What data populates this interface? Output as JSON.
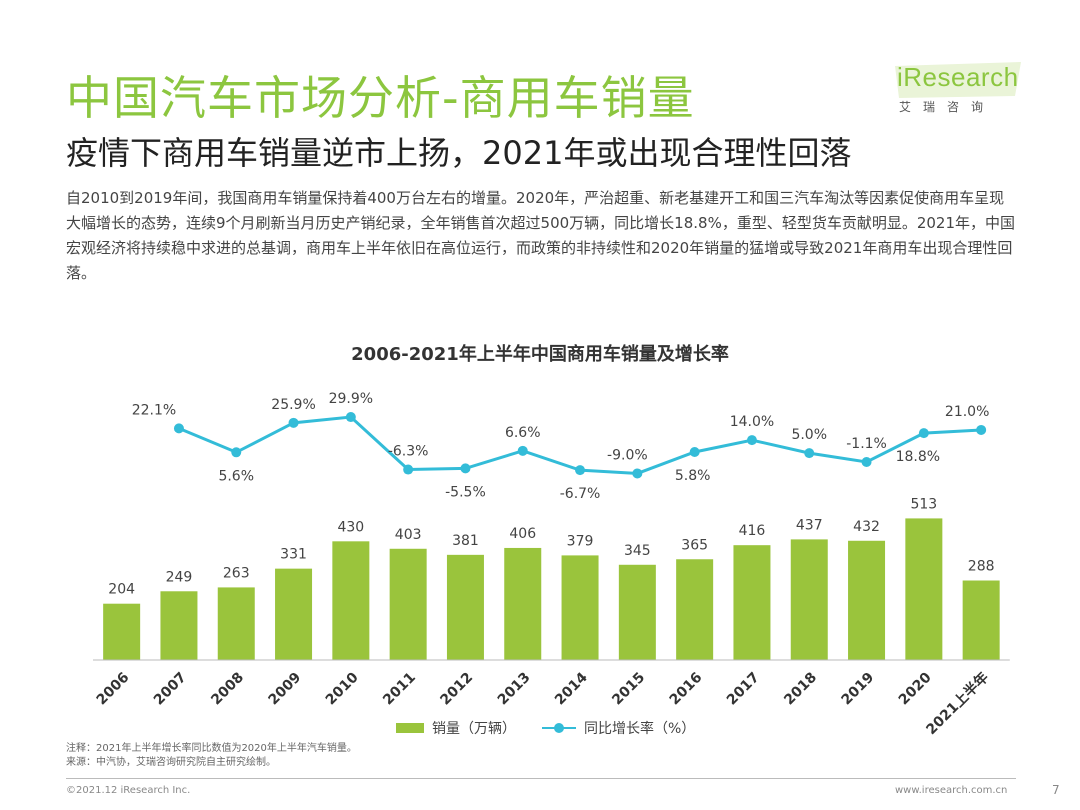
{
  "header": {
    "title": "中国汽车市场分析-商用车销量",
    "subtitle": "疫情下商用车销量逆市上扬，2021年或出现合理性回落",
    "logo_brand": "iResearch",
    "logo_sub": "艾瑞咨询",
    "accent_color": "#8cc63f"
  },
  "body": {
    "paragraph": "自2010到2019年间，我国商用车销量保持着400万台左右的增量。2020年，严治超重、新老基建开工和国三汽车淘汰等因素促使商用车呈现大幅增长的态势，连续9个月刷新当月历史产销纪录，全年销售首次超过500万辆，同比增长18.8%，重型、轻型货车贡献明显。2021年，中国宏观经济将持续稳中求进的总基调，商用车上半年依旧在高位运行，而政策的非持续性和2020年销量的猛增或导致2021年商用车出现合理性回落。"
  },
  "chart_data": {
    "type": "bar",
    "title": "2006-2021年上半年中国商用车销量及增长率",
    "categories": [
      "2006",
      "2007",
      "2008",
      "2009",
      "2010",
      "2011",
      "2012",
      "2013",
      "2014",
      "2015",
      "2016",
      "2017",
      "2018",
      "2019",
      "2020",
      "2021上半年"
    ],
    "series": [
      {
        "name": "销量（万辆）",
        "type": "bar",
        "color": "#9ac43c",
        "values": [
          204,
          249,
          263,
          331,
          430,
          403,
          381,
          406,
          379,
          345,
          365,
          416,
          437,
          432,
          513,
          288
        ],
        "labels": [
          "204",
          "249",
          "263",
          "331",
          "430",
          "403",
          "381",
          "406",
          "379",
          "345",
          "365",
          "416",
          "437",
          "432",
          "513",
          "288"
        ]
      },
      {
        "name": "同比增长率（%）",
        "type": "line",
        "color": "#33bcd8",
        "values": [
          null,
          22.1,
          5.6,
          25.9,
          29.9,
          -6.3,
          -5.5,
          6.6,
          -6.7,
          -9.0,
          5.8,
          14.0,
          5.0,
          -1.1,
          18.8,
          21.0
        ],
        "labels": [
          "",
          "22.1%",
          "5.6%",
          "25.9%",
          "29.9%",
          "-6.3%",
          "-5.5%",
          "6.6%",
          "-6.7%",
          "-9.0%",
          "5.8%",
          "14.0%",
          "5.0%",
          "-1.1%",
          "18.8%",
          "21.0%"
        ]
      }
    ],
    "legend_position": "bottom",
    "grid": false
  },
  "notes": {
    "note": "注释：2021年上半年增长率同比数值为2020年上半年汽车销量。",
    "source": "来源：中汽协，艾瑞咨询研究院自主研究绘制。"
  },
  "footer": {
    "copyright": "©2021.12 iResearch Inc.",
    "website": "www.iresearch.com.cn",
    "page": "7"
  }
}
